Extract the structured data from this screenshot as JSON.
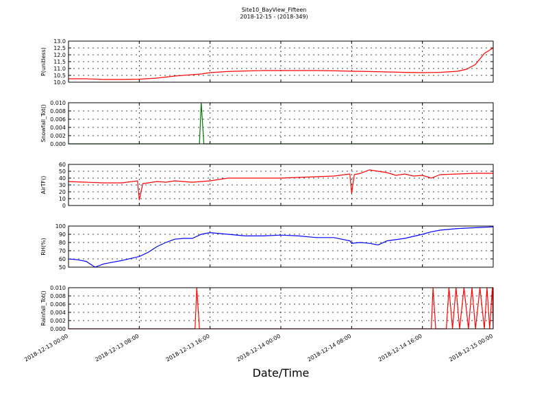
{
  "title": "Site10_BayView_Fifteen",
  "subtitle": "2018-12-15 - (2018-349)",
  "x_label": "Date/Time",
  "chart_data": [
    {
      "type": "line",
      "y_label": "P(unitless)",
      "color": "#ff0000",
      "grid": true,
      "xlim": [
        0,
        48
      ],
      "xticks": [
        0,
        8,
        16,
        24,
        32,
        40,
        48
      ],
      "ylim": [
        10,
        13
      ],
      "yticks": [
        {
          "value": 10,
          "label": "10.0"
        },
        {
          "value": 10.5,
          "label": "10.5"
        },
        {
          "value": 11,
          "label": "11.0"
        },
        {
          "value": 11.5,
          "label": "11.5"
        },
        {
          "value": 12,
          "label": "12.0"
        },
        {
          "value": 12.5,
          "label": "12.5"
        },
        {
          "value": 13,
          "label": "13.0"
        }
      ],
      "x": [
        0,
        2,
        4,
        6,
        8,
        10,
        12,
        14,
        15,
        16,
        18,
        20,
        22,
        24,
        26,
        28,
        30,
        32,
        34,
        36,
        38,
        40,
        42,
        44,
        45,
        46,
        46.5,
        47,
        48
      ],
      "values": [
        10.25,
        10.25,
        10.2,
        10.2,
        10.22,
        10.3,
        10.45,
        10.55,
        10.6,
        10.7,
        10.78,
        10.82,
        10.85,
        10.85,
        10.85,
        10.85,
        10.83,
        10.8,
        10.78,
        10.75,
        10.72,
        10.7,
        10.72,
        10.8,
        10.95,
        11.3,
        11.7,
        12.1,
        12.5
      ]
    },
    {
      "type": "line",
      "y_label": "Snowfall_Tot()",
      "color": "#007700",
      "grid": true,
      "xlim": [
        0,
        48
      ],
      "xticks": [
        0,
        8,
        16,
        24,
        32,
        40,
        48
      ],
      "ylim": [
        0,
        0.01
      ],
      "yticks": [
        {
          "value": 0,
          "label": "0.000"
        },
        {
          "value": 0.002,
          "label": "0.002"
        },
        {
          "value": 0.004,
          "label": "0.004"
        },
        {
          "value": 0.006,
          "label": "0.006"
        },
        {
          "value": 0.008,
          "label": "0.008"
        },
        {
          "value": 0.01,
          "label": "0.010"
        }
      ],
      "x": [
        0,
        14.8,
        15,
        15.3,
        48
      ],
      "values": [
        0,
        0,
        0.01,
        0,
        0
      ]
    },
    {
      "type": "line",
      "y_label": "AirTF()",
      "color": "#ff0000",
      "grid": true,
      "xlim": [
        0,
        48
      ],
      "xticks": [
        0,
        8,
        16,
        24,
        32,
        40,
        48
      ],
      "ylim": [
        0,
        60
      ],
      "yticks": [
        0,
        10,
        20,
        30,
        40,
        50,
        60
      ],
      "x": [
        0,
        2,
        4,
        6,
        7.8,
        8,
        8.4,
        9,
        10,
        11,
        12,
        13,
        14,
        16,
        18,
        20,
        22,
        24,
        26,
        28,
        30,
        31.8,
        32,
        32.3,
        33,
        34,
        35,
        36,
        37,
        38,
        39,
        40,
        41,
        42,
        44,
        46,
        48
      ],
      "values": [
        35,
        34,
        33,
        33,
        36,
        8,
        32,
        33,
        35,
        34,
        36,
        35,
        34,
        36,
        40,
        40,
        40,
        40,
        41,
        42,
        43,
        46,
        18,
        45,
        47,
        52,
        50,
        48,
        44,
        46,
        43,
        44,
        40,
        45,
        46,
        47,
        47
      ]
    },
    {
      "type": "line",
      "y_label": "RH(%)",
      "color": "#0000ff",
      "grid": true,
      "xlim": [
        0,
        48
      ],
      "xticks": [
        0,
        8,
        16,
        24,
        32,
        40,
        48
      ],
      "ylim": [
        50,
        100
      ],
      "yticks": [
        50,
        60,
        70,
        80,
        90,
        100
      ],
      "x": [
        0,
        1,
        2,
        3,
        4,
        6,
        8,
        9,
        10,
        11,
        12,
        13,
        14,
        15,
        16,
        18,
        20,
        22,
        24,
        26,
        28,
        30,
        31.8,
        32,
        33,
        34,
        35,
        36,
        38,
        40,
        41,
        42,
        44,
        46,
        48
      ],
      "values": [
        60,
        59,
        57,
        50,
        54,
        58,
        63,
        68,
        75,
        80,
        84,
        85,
        85,
        90,
        92,
        90,
        88,
        88,
        89,
        88,
        86,
        86,
        82,
        79,
        80,
        79,
        77,
        82,
        85,
        90,
        93,
        95,
        97,
        98,
        99
      ]
    },
    {
      "type": "line",
      "y_label": "Rainfall_Tot()",
      "color": "#ff0000",
      "grid": true,
      "xlim": [
        0,
        48
      ],
      "xticks": [
        {
          "value": 0,
          "label": "2018-12-13 00:00"
        },
        {
          "value": 8,
          "label": "2018-12-13 08:00"
        },
        {
          "value": 16,
          "label": "2018-12-13 16:00"
        },
        {
          "value": 24,
          "label": "2018-12-14 00:00"
        },
        {
          "value": 32,
          "label": "2018-12-14 08:00"
        },
        {
          "value": 40,
          "label": "2018-12-14 16:00"
        },
        {
          "value": 48,
          "label": "2018-12-15 00:00"
        }
      ],
      "ylim": [
        0,
        0.01
      ],
      "yticks": [
        {
          "value": 0,
          "label": "0.000"
        },
        {
          "value": 0.002,
          "label": "0.002"
        },
        {
          "value": 0.004,
          "label": "0.004"
        },
        {
          "value": 0.006,
          "label": "0.006"
        },
        {
          "value": 0.008,
          "label": "0.008"
        },
        {
          "value": 0.01,
          "label": "0.010"
        }
      ],
      "x": [
        0,
        14.3,
        14.5,
        14.8,
        41,
        41.2,
        41.5,
        42.7,
        43,
        43.4,
        43.8,
        44.2,
        44.7,
        45.2,
        45.6,
        46,
        46.5,
        47,
        47.3,
        47.6,
        47.9,
        48
      ],
      "values": [
        0,
        0,
        0.01,
        0,
        0,
        0.01,
        0,
        0,
        0.01,
        0,
        0.01,
        0,
        0.01,
        0,
        0.01,
        0,
        0.01,
        0,
        0.01,
        0,
        0.01,
        0
      ]
    }
  ]
}
